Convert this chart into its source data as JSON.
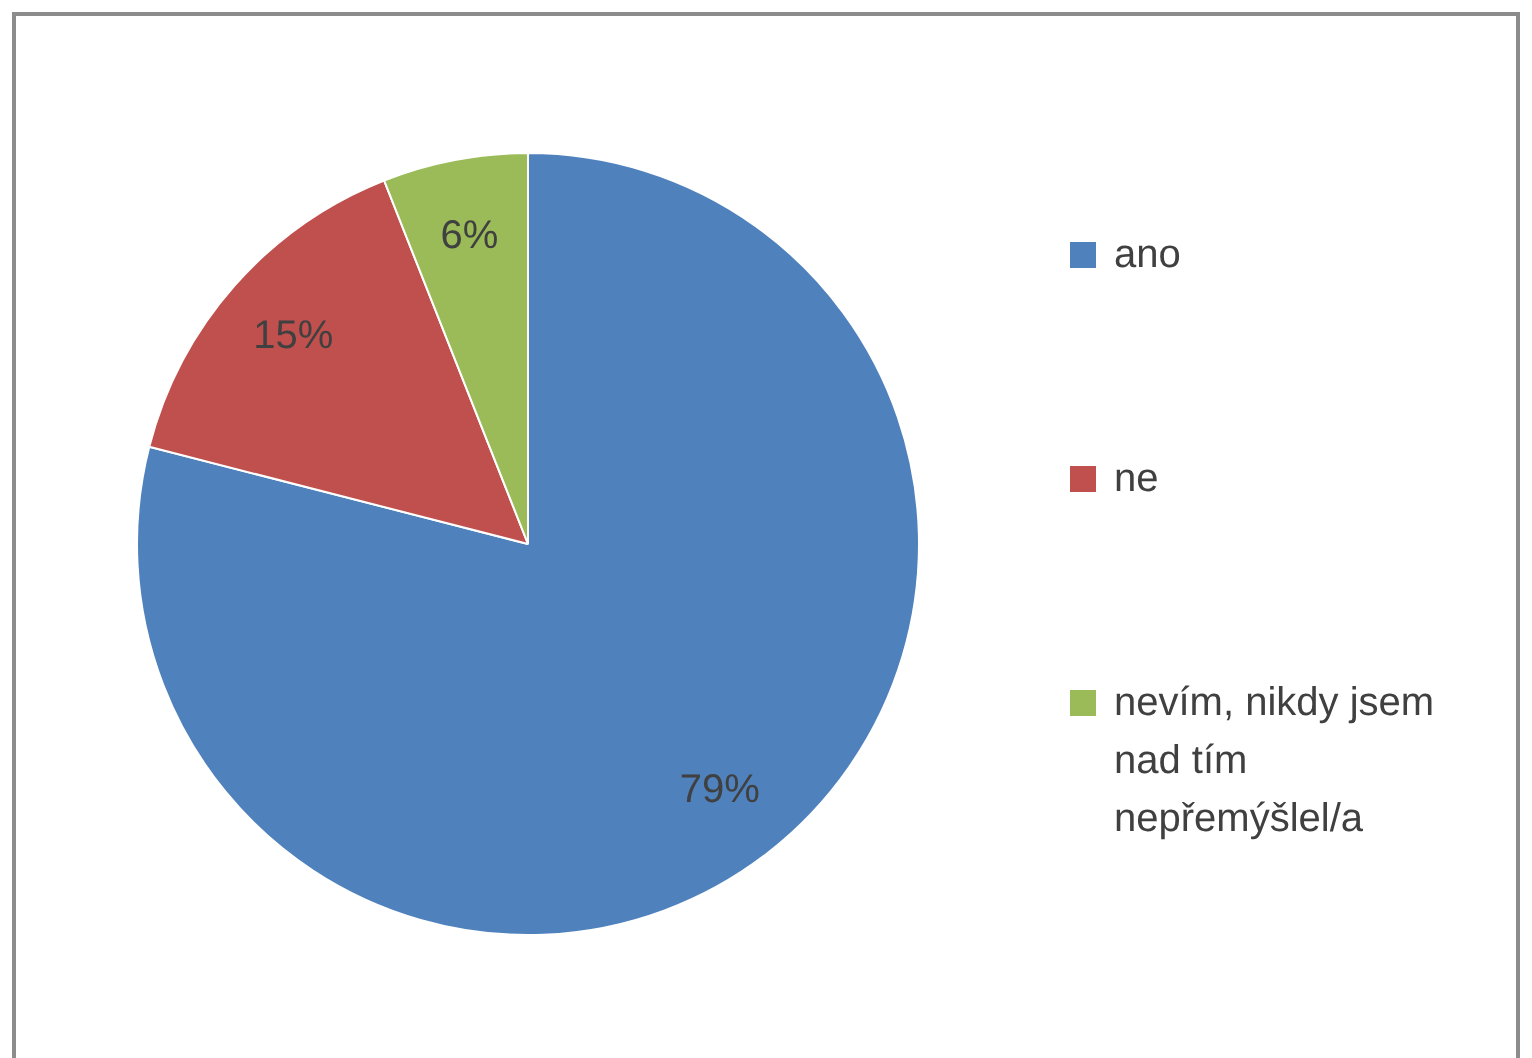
{
  "chart_data": {
    "type": "pie",
    "categories": [
      "ano",
      "ne",
      "nevím, nikdy jsem nad tím nepřemýšlel/a"
    ],
    "values": [
      79,
      15,
      6
    ],
    "colors": [
      "#4f81bd",
      "#c0504d",
      "#9bbb59"
    ],
    "value_labels": [
      "79%",
      "15%",
      "6%"
    ],
    "legend": "right"
  }
}
